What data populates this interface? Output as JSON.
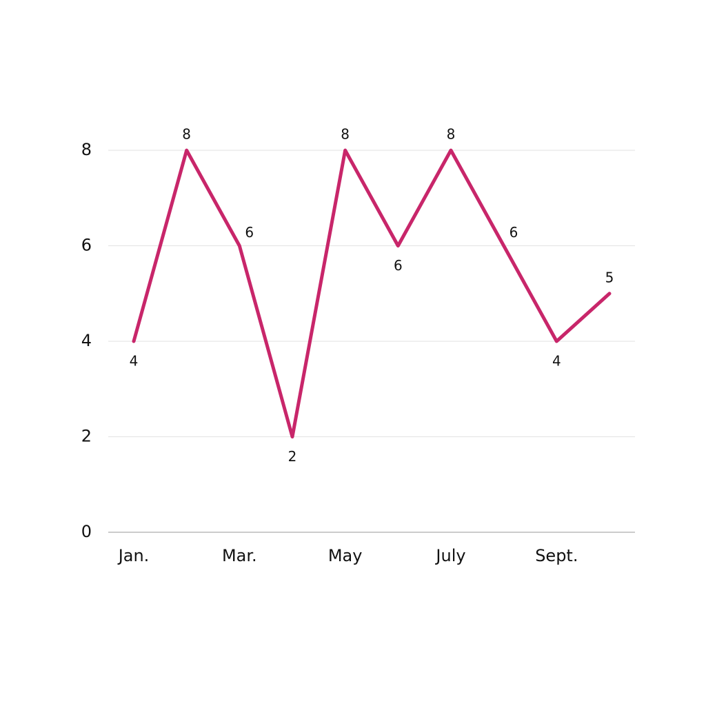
{
  "chart_data": {
    "type": "line",
    "categories": [
      "Jan.",
      null,
      "Mar.",
      null,
      "May",
      null,
      "July",
      null,
      "Sept.",
      null
    ],
    "series": [
      {
        "color": "#c8266a",
        "values": [
          4,
          8,
          6,
          2,
          8,
          6,
          8,
          6,
          4,
          5
        ]
      }
    ],
    "ylim": [
      0,
      8
    ],
    "yticks": [
      0,
      2,
      4,
      6,
      8
    ],
    "grid": true,
    "data_labels": true
  }
}
